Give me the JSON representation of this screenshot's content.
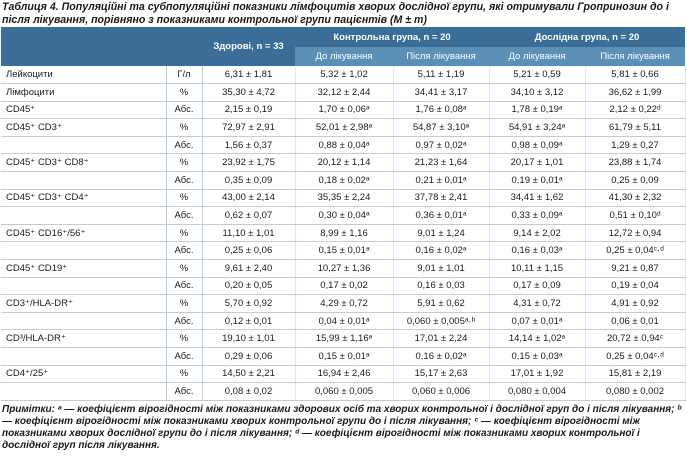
{
  "caption": "Таблиця 4. Популяційні та субпопуляційні показники лімфоцитів хворих дослідної групи, які отримували Гропринозин до і після лікування, порівняно з показниками контрольної групи пацієнтів (M ± m)",
  "headers": {
    "healthy": "Здорові, n = 33",
    "control": "Контрольна група, n = 20",
    "experimental": "Дослідна група, n = 20",
    "before": "До лікування",
    "after": "Після лікування"
  },
  "rows": [
    {
      "ind": "Лейкоцити",
      "unit": "Г/л",
      "v": [
        "6,31 ± 1,81",
        "5,32 ± 1,02",
        "5,11 ± 1,19",
        "5,21 ± 0,59",
        "5,81 ± 0,66"
      ]
    },
    {
      "ind": "Лімфоцити",
      "unit": "%",
      "v": [
        "35,30 ± 4,72",
        "32,12 ± 2,44",
        "34,41 ± 3,17",
        "34,10 ± 3,12",
        "36,62 ± 1,99"
      ]
    },
    {
      "ind": "CD45⁺",
      "unit": "Абс.",
      "v": [
        "2,15 ± 0,19",
        "1,70 ± 0,06ᵃ",
        "1,76 ± 0,08ᵃ",
        "1,78 ± 0,19ᵃ",
        "2,12 ± 0,22ᵈ"
      ]
    },
    {
      "ind": "CD45⁺ CD3⁺",
      "unit": "%",
      "v": [
        "72,97 ± 2,91",
        "52,01 ± 2,98ᵃ",
        "54,87 ± 3,10ᵃ",
        "54,91 ± 3,24ᵃ",
        "61,79 ± 5,11"
      ]
    },
    {
      "ind": "",
      "unit": "Абс.",
      "v": [
        "1,56 ± 0,37",
        "0,88 ± 0,04ᵃ",
        "0,97 ± 0,02ᵃ",
        "0,98 ± 0,09ᵃ",
        "1,29 ± 0,27"
      ]
    },
    {
      "ind": "CD45⁺ CD3⁺ CD8⁺",
      "unit": "%",
      "v": [
        "23,92 ± 1,75",
        "20,12 ± 1,14",
        "21,23 ± 1,64",
        "20,17 ± 1,01",
        "23,88 ± 1,74"
      ]
    },
    {
      "ind": "",
      "unit": "Абс.",
      "v": [
        "0,35 ± 0,09",
        "0,18 ± 0,02ᵃ",
        "0,21 ± 0,01ᵃ",
        "0,19 ± 0,01ᵃ",
        "0,25 ± 0,09"
      ]
    },
    {
      "ind": "CD45⁺ CD3⁺ CD4⁺",
      "unit": "%",
      "v": [
        "43,00 ± 2,14",
        "35,35 ± 2,24",
        "37,78 ± 2,41",
        "34,41 ± 1,62",
        "41,30 ± 2,32"
      ]
    },
    {
      "ind": "",
      "unit": "Абс.",
      "v": [
        "0,62 ± 0,07",
        "0,30 ± 0,04ᵃ",
        "0,36 ± 0,01ᵃ",
        "0,33 ± 0,09ᵃ",
        "0,51 ± 0,10ᵈ"
      ]
    },
    {
      "ind": "CD45⁺ CD16⁺/56⁺",
      "unit": "%",
      "v": [
        "11,10 ± 1,01",
        "8,99 ± 1,16",
        "9,01 ± 1,24",
        "9,14 ± 2,02",
        "12,72 ± 0,94"
      ]
    },
    {
      "ind": "",
      "unit": "Абс.",
      "v": [
        "0,25 ± 0,06",
        "0,15 ± 0,01ᵃ",
        "0,16 ± 0,02ᵃ",
        "0,16 ± 0,03ᵃ",
        "0,25 ± 0,04ᶜ·ᵈ"
      ]
    },
    {
      "ind": "CD45⁺ CD19⁺",
      "unit": "%",
      "v": [
        "9,61 ± 2,40",
        "10,27 ± 1,36",
        "9,01 ± 1,01",
        "10,11 ± 1,15",
        "9,21 ± 0,87"
      ]
    },
    {
      "ind": "",
      "unit": "Абс.",
      "v": [
        "0,20 ± 0,05",
        "0,17 ± 0,02",
        "0,16 ± 0,03",
        "0,17 ± 0,09",
        "0,19 ± 0,04"
      ]
    },
    {
      "ind": "CD3⁺/HLA-DR⁺",
      "unit": "%",
      "v": [
        "5,70 ± 0,92",
        "4,29 ± 0,72",
        "5,91 ± 0,62",
        "4,31 ± 0,72",
        "4,91 ± 0,92"
      ]
    },
    {
      "ind": "",
      "unit": "Абс.",
      "v": [
        "0,12 ± 0,01",
        "0,04 ± 0,01ᵃ",
        "0,060 ± 0,005ᵃ·ᵇ",
        "0,07 ± 0,01ᵃ",
        "0,06 ± 0,01"
      ]
    },
    {
      "ind": "CD³/HLA-DR⁺",
      "unit": "%",
      "v": [
        "19,10 ± 1,01",
        "15,99 ± 1,16ᵃ",
        "17,01 ± 2,24",
        "14,14 ± 1,02ᵃ",
        "20,72 ± 0,94ᶜ"
      ]
    },
    {
      "ind": "",
      "unit": "Абс.",
      "v": [
        "0,29 ± 0,06",
        "0,15 ± 0,01ᵃ",
        "0,16 ± 0,02ᵃ",
        "0,15 ± 0,03ᵃ",
        "0,25 ± 0,04ᶜ·ᵈ"
      ]
    },
    {
      "ind": "CD4⁺/25⁺",
      "unit": "%",
      "v": [
        "14,50 ± 2,21",
        "16,94 ± 2,46",
        "15,17 ± 2,63",
        "17,01 ± 1,92",
        "15,81 ± 2,19"
      ]
    },
    {
      "ind": "",
      "unit": "Абс.",
      "v": [
        "0,08 ± 0,02",
        "0,060 ± 0,005",
        "0,060 ± 0,006",
        "0,080 ± 0,004",
        "0,080 ± 0,002"
      ]
    }
  ],
  "notes": "Примітки: ᵃ — коефіцієнт вірогідності між показниками здорових осіб та хворих контрольної і дослідної груп до і після лікування; ᵇ — коефіцієнт вірогідності між показниками хворих контрольної групи до і після лікування; ᶜ — коефіцієнт вірогідності між показниками хворих дослідної групи до і після лікування; ᵈ — коефіцієнт вірогідності між показниками хворих контрольної і дослідної груп після лікування."
}
